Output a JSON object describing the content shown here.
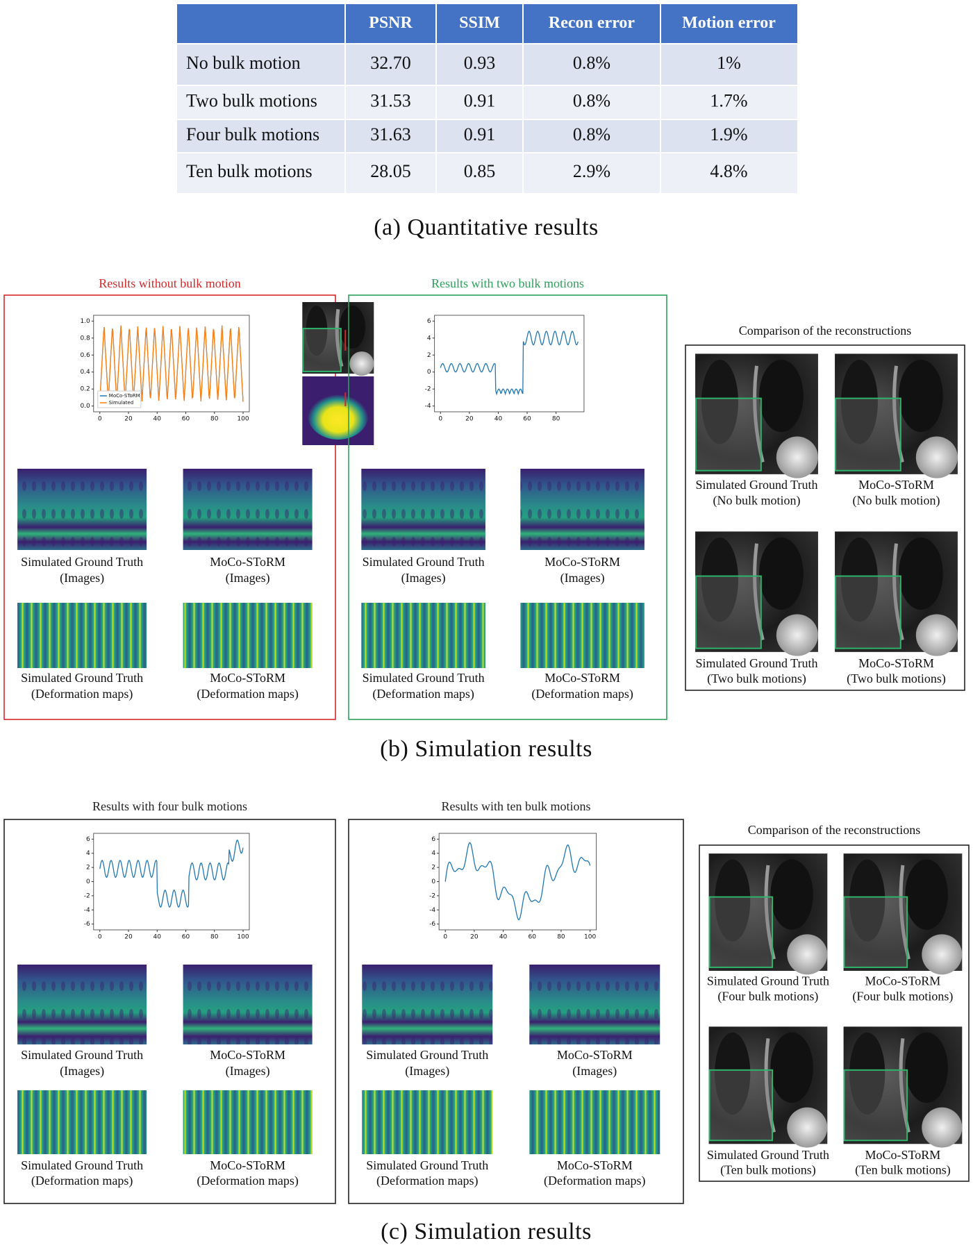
{
  "table": {
    "headers": [
      "PSNR",
      "SSIM",
      "Recon error",
      "Motion error"
    ],
    "rows": [
      [
        "No bulk motion",
        "32.70",
        "0.93",
        "0.8%",
        "1%"
      ],
      [
        "Two bulk motions",
        "31.53",
        "0.91",
        "0.8%",
        "1.7%"
      ],
      [
        "Four bulk motions",
        "31.63",
        "0.91",
        "0.8%",
        "1.9%"
      ],
      [
        "Ten bulk motions",
        "28.05",
        "0.85",
        "2.9%",
        "4.8%"
      ]
    ]
  },
  "captions": [
    "(a) Quantitative results",
    "(b) Simulation results",
    "(c) Simulation results"
  ],
  "sections": [
    {
      "panels": [
        {
          "title": "Results without bulk motion",
          "color": "#d62728",
          "plot": {
            "xticks": [
              "0",
              "20",
              "40",
              "60",
              "80",
              "100"
            ],
            "yticks": [
              "0.0",
              "0.2",
              "0.4",
              "0.6",
              "0.8",
              "1.0"
            ],
            "legend": [
              "MoCo-SToRM",
              "Simulated"
            ]
          },
          "items": [
            [
              "Simulated Ground Truth",
              "(Images)"
            ],
            [
              "MoCo-SToRM",
              "(Images)"
            ],
            [
              "Simulated Ground Truth",
              "(Deformation maps)"
            ],
            [
              "MoCo-SToRM",
              "(Deformation maps)"
            ]
          ]
        },
        {
          "title": "Results with two bulk motions",
          "color": "#2ca05a",
          "plot": {
            "xticks": [
              "0",
              "20",
              "40",
              "60",
              "80"
            ],
            "yticks": [
              "-4",
              "-2",
              "0",
              "2",
              "4",
              "6"
            ]
          },
          "items": [
            [
              "Simulated Ground Truth",
              "(Images)"
            ],
            [
              "MoCo-SToRM",
              "(Images)"
            ],
            [
              "Simulated Ground Truth",
              "(Deformation maps)"
            ],
            [
              "MoCo-SToRM",
              "(Deformation maps)"
            ]
          ]
        }
      ],
      "comparison": {
        "title": "Comparison of the reconstructions",
        "items": [
          [
            "Simulated Ground Truth",
            "(No bulk motion)"
          ],
          [
            "MoCo-SToRM",
            "(No bulk motion)"
          ],
          [
            "Simulated Ground Truth",
            "(Two bulk motions)"
          ],
          [
            "MoCo-SToRM",
            "(Two bulk motions)"
          ]
        ]
      }
    },
    {
      "panels": [
        {
          "title": "Results with four bulk motions",
          "color": "#222222",
          "plot": {
            "xticks": [
              "0",
              "20",
              "40",
              "60",
              "80",
              "100"
            ],
            "yticks": [
              "-6",
              "-4",
              "-2",
              "0",
              "2",
              "4",
              "6"
            ]
          },
          "items": [
            [
              "Simulated Ground Truth",
              "(Images)"
            ],
            [
              "MoCo-SToRM",
              "(Images)"
            ],
            [
              "Simulated Ground Truth",
              "(Deformation maps)"
            ],
            [
              "MoCo-SToRM",
              "(Deformation maps)"
            ]
          ]
        },
        {
          "title": "Results with ten bulk motions",
          "color": "#222222",
          "plot": {
            "xticks": [
              "0",
              "20",
              "40",
              "60",
              "80",
              "100"
            ],
            "yticks": [
              "-6",
              "-4",
              "-2",
              "0",
              "2",
              "4",
              "6"
            ]
          },
          "items": [
            [
              "Simulated Ground Truth",
              "(Images)"
            ],
            [
              "MoCo-SToRM",
              "(Images)"
            ],
            [
              "Simulated Ground Truth",
              "(Deformation maps)"
            ],
            [
              "MoCo-SToRM",
              "(Deformation maps)"
            ]
          ]
        }
      ],
      "comparison": {
        "title": "Comparison of the reconstructions",
        "items": [
          [
            "Simulated Ground Truth",
            "(Four bulk motions)"
          ],
          [
            "MoCo-SToRM",
            "(Four bulk motions)"
          ],
          [
            "Simulated Ground Truth",
            "(Ten bulk motions)"
          ],
          [
            "MoCo-SToRM",
            "(Ten bulk motions)"
          ]
        ]
      }
    }
  ]
}
